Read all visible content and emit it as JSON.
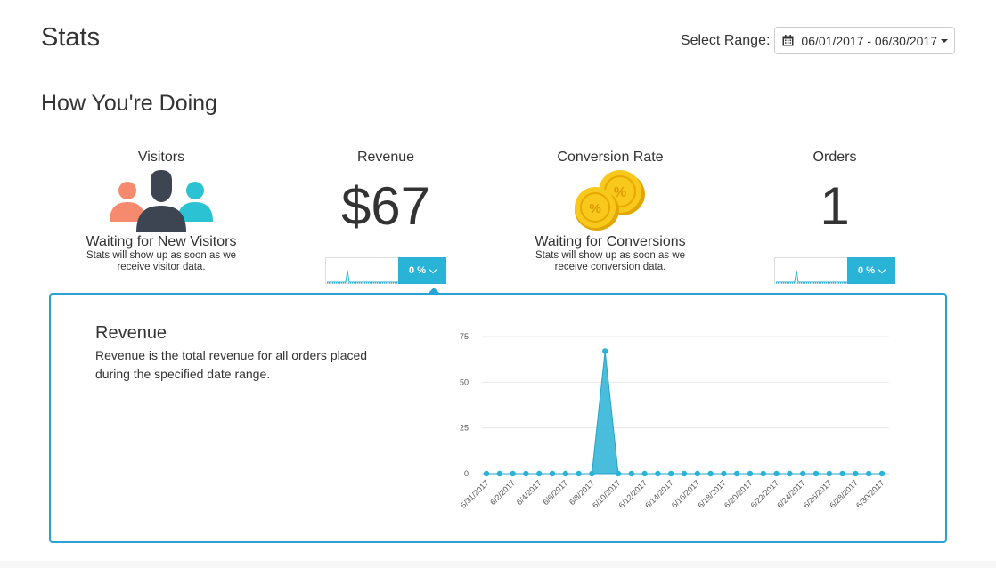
{
  "header": {
    "title": "Stats",
    "range_label": "Select Range:",
    "range_value": "06/01/2017 - 06/30/2017",
    "range_icon": "calendar-icon"
  },
  "section": {
    "title": "How You're Doing"
  },
  "stats": {
    "visitors": {
      "label": "Visitors",
      "icon": "people-icon",
      "wait_title": "Waiting for New Visitors",
      "wait_text_1": "Stats will show up as soon as we",
      "wait_text_2": "receive visitor data."
    },
    "revenue": {
      "label": "Revenue",
      "value": "$67",
      "change": "0 %"
    },
    "conversion": {
      "label": "Conversion Rate",
      "icon": "coins-icon",
      "wait_title": "Waiting for Conversions",
      "wait_text_1": "Stats will show up as soon as we",
      "wait_text_2": "receive conversion data."
    },
    "orders": {
      "label": "Orders",
      "value": "1",
      "change": "0 %"
    }
  },
  "detail": {
    "title": "Revenue",
    "description": "Revenue is the total revenue for all orders placed during the specified date range."
  },
  "colors": {
    "accent": "#29b3d6",
    "border": "#29a3d6"
  },
  "chart_data": {
    "type": "area",
    "x": [
      "5/31/2017",
      "6/1/2017",
      "6/2/2017",
      "6/3/2017",
      "6/4/2017",
      "6/5/2017",
      "6/6/2017",
      "6/7/2017",
      "6/8/2017",
      "6/9/2017",
      "6/10/2017",
      "6/11/2017",
      "6/12/2017",
      "6/13/2017",
      "6/14/2017",
      "6/15/2017",
      "6/16/2017",
      "6/17/2017",
      "6/18/2017",
      "6/19/2017",
      "6/20/2017",
      "6/21/2017",
      "6/22/2017",
      "6/23/2017",
      "6/24/2017",
      "6/25/2017",
      "6/26/2017",
      "6/27/2017",
      "6/28/2017",
      "6/29/2017",
      "6/30/2017"
    ],
    "tick_labels": [
      "5/31/2017",
      "6/2/2017",
      "6/4/2017",
      "6/6/2017",
      "6/8/2017",
      "6/10/2017",
      "6/12/2017",
      "6/14/2017",
      "6/16/2017",
      "6/18/2017",
      "6/20/2017",
      "6/22/2017",
      "6/24/2017",
      "6/26/2017",
      "6/28/2017",
      "6/30/2017"
    ],
    "values": [
      0,
      0,
      0,
      0,
      0,
      0,
      0,
      0,
      0,
      67,
      0,
      0,
      0,
      0,
      0,
      0,
      0,
      0,
      0,
      0,
      0,
      0,
      0,
      0,
      0,
      0,
      0,
      0,
      0,
      0,
      0
    ],
    "y_ticks": [
      0,
      25,
      50,
      75
    ],
    "ylim": [
      0,
      75
    ],
    "grid": true
  }
}
